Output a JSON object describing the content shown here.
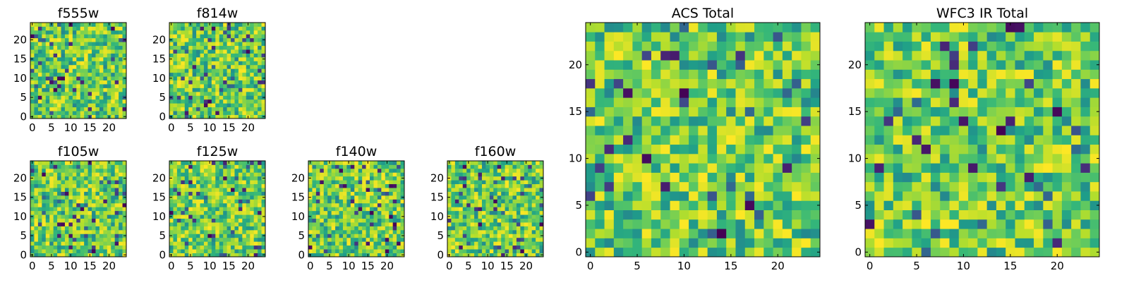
{
  "chart_data": [
    {
      "type": "heatmap",
      "title": "f555w",
      "xlabel": "",
      "ylabel": "",
      "xlim": [
        0,
        25
      ],
      "ylim": [
        0,
        25
      ],
      "grid_size": [
        25,
        25
      ],
      "x_ticks": [
        "0",
        "5",
        "10",
        "15",
        "20"
      ],
      "y_ticks": [
        "0",
        "5",
        "10",
        "15",
        "20"
      ],
      "colormap": "viridis",
      "seed": 11,
      "values": [],
      "note": "25x25 pixel noise map; individual pixel values not legible"
    },
    {
      "type": "heatmap",
      "title": "f814w",
      "xlabel": "",
      "ylabel": "",
      "xlim": [
        0,
        25
      ],
      "ylim": [
        0,
        25
      ],
      "grid_size": [
        25,
        25
      ],
      "x_ticks": [
        "0",
        "5",
        "10",
        "15",
        "20"
      ],
      "y_ticks": [
        "0",
        "5",
        "10",
        "15",
        "20"
      ],
      "colormap": "viridis",
      "seed": 23,
      "values": []
    },
    {
      "type": "heatmap",
      "title": "f105w",
      "xlabel": "",
      "ylabel": "",
      "xlim": [
        0,
        25
      ],
      "ylim": [
        0,
        25
      ],
      "grid_size": [
        25,
        25
      ],
      "x_ticks": [
        "0",
        "5",
        "10",
        "15",
        "20"
      ],
      "y_ticks": [
        "0",
        "5",
        "10",
        "15",
        "20"
      ],
      "colormap": "viridis",
      "seed": 37,
      "values": []
    },
    {
      "type": "heatmap",
      "title": "f125w",
      "xlabel": "",
      "ylabel": "",
      "xlim": [
        0,
        25
      ],
      "ylim": [
        0,
        25
      ],
      "grid_size": [
        25,
        25
      ],
      "x_ticks": [
        "0",
        "5",
        "10",
        "15",
        "20"
      ],
      "y_ticks": [
        "0",
        "5",
        "10",
        "15",
        "20"
      ],
      "colormap": "viridis",
      "seed": 41,
      "values": []
    },
    {
      "type": "heatmap",
      "title": "f140w",
      "xlabel": "",
      "ylabel": "",
      "xlim": [
        0,
        25
      ],
      "ylim": [
        0,
        25
      ],
      "grid_size": [
        25,
        25
      ],
      "x_ticks": [
        "0",
        "5",
        "10",
        "15",
        "20"
      ],
      "y_ticks": [
        "0",
        "5",
        "10",
        "15",
        "20"
      ],
      "colormap": "viridis",
      "seed": 53,
      "values": []
    },
    {
      "type": "heatmap",
      "title": "f160w",
      "xlabel": "",
      "ylabel": "",
      "xlim": [
        0,
        25
      ],
      "ylim": [
        0,
        25
      ],
      "grid_size": [
        25,
        25
      ],
      "x_ticks": [
        "0",
        "5",
        "10",
        "15",
        "20"
      ],
      "y_ticks": [
        "0",
        "5",
        "10",
        "15",
        "20"
      ],
      "colormap": "viridis",
      "seed": 67,
      "values": []
    },
    {
      "type": "heatmap",
      "title": "ACS Total",
      "xlabel": "",
      "ylabel": "",
      "xlim": [
        0,
        25
      ],
      "ylim": [
        0,
        25
      ],
      "grid_size": [
        25,
        25
      ],
      "x_ticks": [
        "0",
        "5",
        "10",
        "15",
        "20"
      ],
      "y_ticks": [
        "0",
        "5",
        "10",
        "15",
        "20"
      ],
      "colormap": "viridis",
      "seed": 79,
      "values": []
    },
    {
      "type": "heatmap",
      "title": "WFC3 IR Total",
      "xlabel": "",
      "ylabel": "",
      "xlim": [
        0,
        25
      ],
      "ylim": [
        0,
        25
      ],
      "grid_size": [
        25,
        25
      ],
      "x_ticks": [
        "0",
        "5",
        "10",
        "15",
        "20"
      ],
      "y_ticks": [
        "0",
        "5",
        "10",
        "15",
        "20"
      ],
      "colormap": "viridis",
      "seed": 97,
      "values": []
    }
  ]
}
